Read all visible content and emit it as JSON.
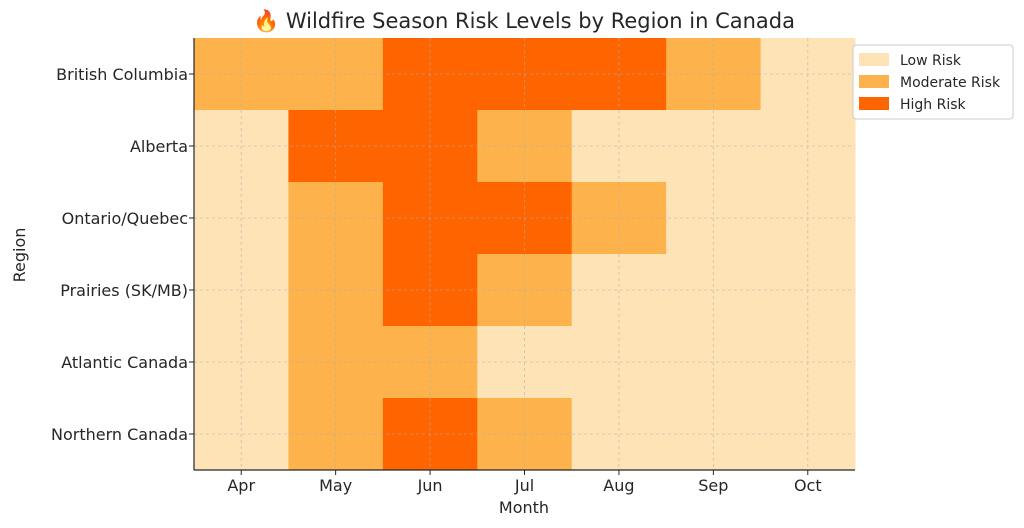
{
  "chart_data": {
    "type": "heatmap",
    "title": "🔥 Wildfire Season Risk Levels by Region in Canada",
    "xlabel": "Month",
    "ylabel": "Region",
    "x": [
      "Apr",
      "May",
      "Jun",
      "Jul",
      "Aug",
      "Sep",
      "Oct"
    ],
    "y": [
      "British Columbia",
      "Alberta",
      "Ontario/Quebec",
      "Prairies (SK/MB)",
      "Atlantic Canada",
      "Northern Canada"
    ],
    "values": [
      [
        1,
        1,
        2,
        2,
        2,
        1,
        0
      ],
      [
        0,
        2,
        2,
        1,
        0,
        0,
        0
      ],
      [
        0,
        1,
        2,
        2,
        1,
        0,
        0
      ],
      [
        0,
        1,
        2,
        1,
        0,
        0,
        0
      ],
      [
        0,
        1,
        1,
        0,
        0,
        0,
        0
      ],
      [
        0,
        1,
        2,
        1,
        0,
        0,
        0
      ]
    ],
    "levels": [
      {
        "value": 0,
        "name": "Low Risk",
        "color": "#fde3b5"
      },
      {
        "value": 1,
        "name": "Moderate Risk",
        "color": "#fdb24c"
      },
      {
        "value": 2,
        "name": "High Risk",
        "color": "#fe6500"
      }
    ],
    "grid": true,
    "legend": "top-right"
  }
}
